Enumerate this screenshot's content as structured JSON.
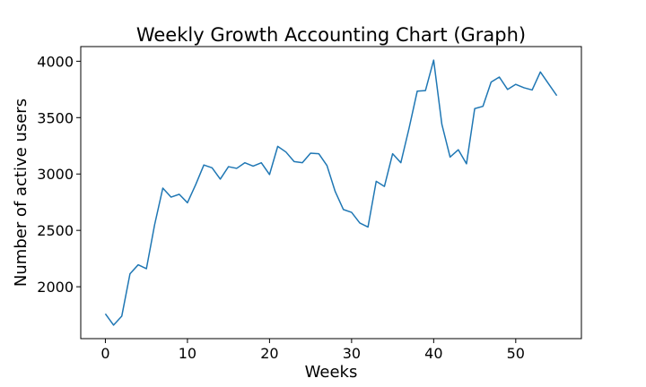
{
  "chart_data": {
    "type": "line",
    "title": "Weekly Growth Accounting Chart (Graph)",
    "xlabel": "Weeks",
    "ylabel": "Number of active users",
    "xlim": [
      -3,
      58
    ],
    "ylim": [
      1540,
      4130
    ],
    "xticks": [
      0,
      10,
      20,
      30,
      40,
      50
    ],
    "yticks": [
      2000,
      2500,
      3000,
      3500,
      4000
    ],
    "grid": false,
    "series": [
      {
        "color": "#1f77b4",
        "x": [
          0,
          1,
          2,
          3,
          4,
          5,
          6,
          7,
          8,
          9,
          10,
          11,
          12,
          13,
          14,
          15,
          16,
          17,
          18,
          19,
          20,
          21,
          22,
          23,
          24,
          25,
          26,
          27,
          28,
          29,
          30,
          31,
          32,
          33,
          34,
          35,
          36,
          37,
          38,
          39,
          40,
          41,
          42,
          43,
          44,
          45,
          46,
          47,
          48,
          49,
          50,
          51,
          52,
          53,
          54,
          55
        ],
        "y": [
          1760,
          1660,
          1740,
          2115,
          2195,
          2160,
          2550,
          2875,
          2795,
          2820,
          2745,
          2905,
          3080,
          3055,
          2955,
          3065,
          3050,
          3100,
          3070,
          3100,
          2995,
          3245,
          3195,
          3110,
          3100,
          3185,
          3180,
          3075,
          2845,
          2685,
          2660,
          2565,
          2530,
          2935,
          2890,
          3180,
          3100,
          3405,
          3735,
          3740,
          4010,
          3440,
          3150,
          3215,
          3090,
          3580,
          3600,
          3815,
          3860,
          3750,
          3795,
          3765,
          3745,
          3905,
          3800,
          3695
        ]
      }
    ]
  }
}
